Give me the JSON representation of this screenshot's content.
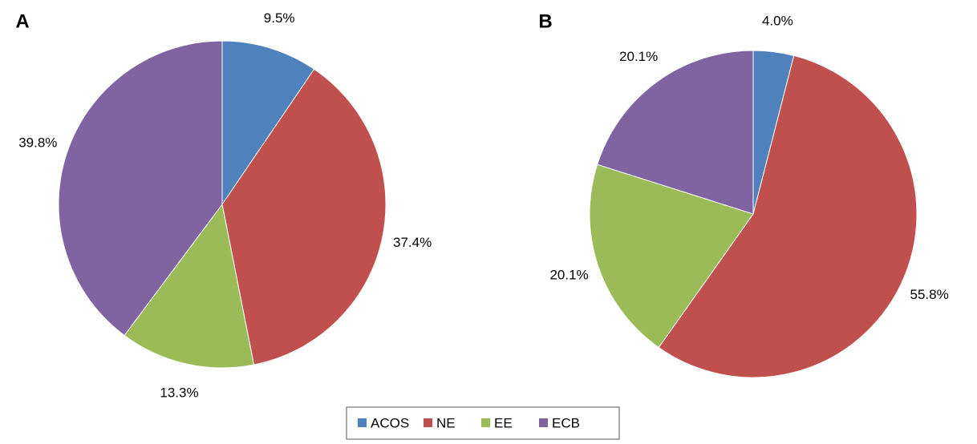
{
  "chart_data": [
    {
      "type": "pie",
      "title": "A",
      "categories": [
        "ACOS",
        "NE",
        "EE",
        "ECB"
      ],
      "values": [
        9.5,
        37.4,
        13.3,
        39.8
      ],
      "value_labels": [
        "9.5%",
        "37.4%",
        "13.3%",
        "39.8%"
      ],
      "colors": [
        "#4f81bd",
        "#c0504d",
        "#9bbb59",
        "#8064a2"
      ]
    },
    {
      "type": "pie",
      "title": "B",
      "categories": [
        "ACOS",
        "NE",
        "EE",
        "ECB"
      ],
      "values": [
        4.0,
        55.8,
        20.1,
        20.1
      ],
      "value_labels": [
        "4.0%",
        "55.8%",
        "20.1%",
        "20.1%"
      ],
      "colors": [
        "#4f81bd",
        "#c0504d",
        "#9bbb59",
        "#8064a2"
      ]
    }
  ]
}
